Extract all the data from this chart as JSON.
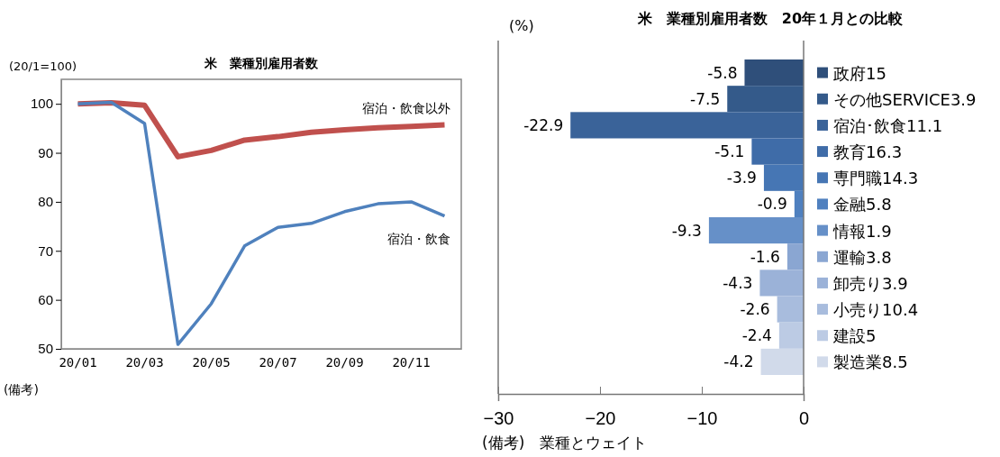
{
  "chart_data": [
    {
      "type": "line",
      "title": "米　業種別雇用者数",
      "ylabel": "(20/1=100)",
      "annotations": [
        "(備考)"
      ],
      "categories": [
        "20/01",
        null,
        "20/03",
        null,
        "20/05",
        null,
        "20/07",
        null,
        "20/09",
        null,
        "20/11",
        null
      ],
      "ylim": [
        50,
        105
      ],
      "yticks": [
        50,
        60,
        70,
        80,
        90,
        100
      ],
      "grid": false,
      "legend": false,
      "marker": "none",
      "line_style": "solid",
      "series": [
        {
          "name": "宿泊・飲食以外",
          "color": "#c0504d",
          "values": [
            100,
            100.2,
            99.7,
            89.2,
            90.5,
            92.6,
            93.3,
            94.2,
            94.7,
            95.1,
            95.4,
            95.7
          ]
        },
        {
          "name": "宿泊・飲食",
          "color": "#4f81bd",
          "values": [
            100,
            100.3,
            96,
            50.9,
            59.2,
            71.0,
            74.8,
            75.6,
            78.0,
            79.6,
            80.0,
            77.1
          ]
        }
      ]
    },
    {
      "type": "bar",
      "orientation": "horizontal",
      "title": "米　業種別雇用者数　20年１月との比較",
      "xlabel": "(%)",
      "annotations": [
        "(備考)　業種とウェイト"
      ],
      "categories": [
        "政府15",
        "その他SERVICE3.9",
        "宿泊･飲食11.1",
        "教育16.3",
        "専門職14.3",
        "金融5.8",
        "情報1.9",
        "運輸3.8",
        "卸売り3.9",
        "小売り10.4",
        "建設5",
        "製造業8.5"
      ],
      "values": [
        -5.8,
        -7.5,
        -22.9,
        -5.1,
        -3.9,
        -0.9,
        -9.3,
        -1.6,
        -4.3,
        -2.6,
        -2.4,
        -4.2
      ],
      "colors": [
        "#2f4f7a",
        "#345a8a",
        "#3a6399",
        "#3f6ca8",
        "#4676b4",
        "#4f80bf",
        "#6690c8",
        "#8aa6d2",
        "#9bb2d8",
        "#a8bcdd",
        "#bccbe4",
        "#d1daea"
      ],
      "xlim": [
        -30,
        0
      ],
      "xticks": [
        {
          "value": -30,
          "label": "−30"
        },
        {
          "value": -20,
          "label": "−20"
        },
        {
          "value": -10,
          "label": "−10"
        },
        0
      ],
      "data_labels": true,
      "grid": false
    }
  ]
}
